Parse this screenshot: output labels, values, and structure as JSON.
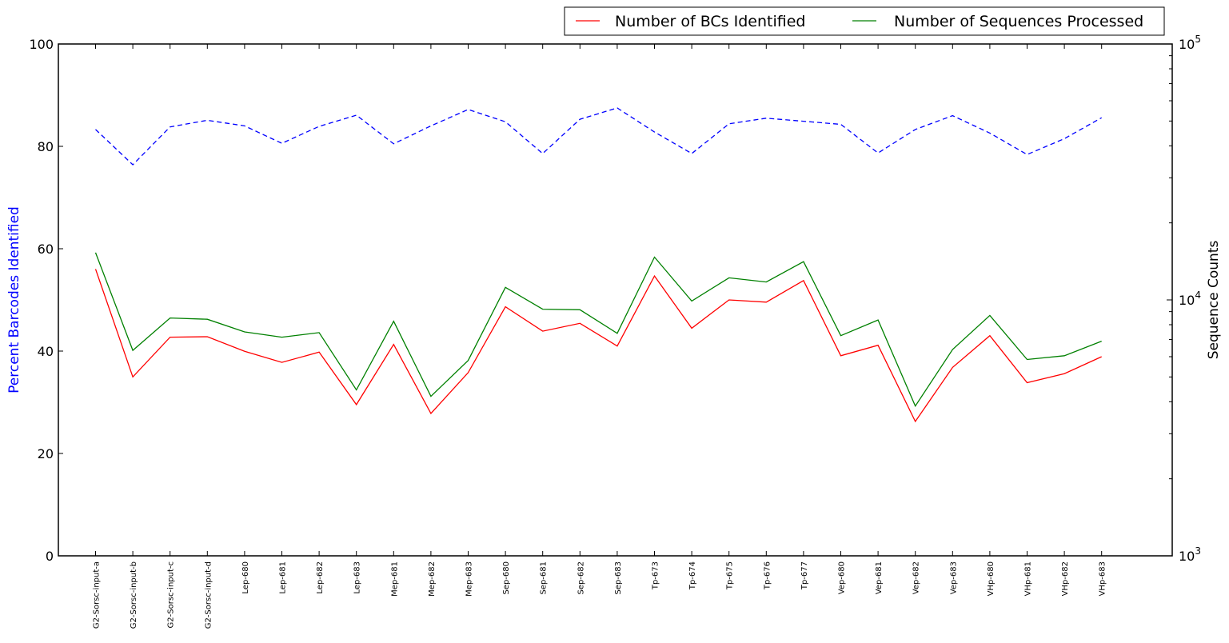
{
  "chart_data": {
    "type": "line",
    "ylabel_left": "Percent Barcodes Identified",
    "ylabel_right": "Sequence Counts",
    "ylim_left": [
      0,
      100
    ],
    "ylim_right": [
      1000,
      100000
    ],
    "right_scale": "log",
    "left_ticks": [
      "0",
      "20",
      "40",
      "60",
      "80",
      "100"
    ],
    "right_ticks": [
      {
        "base": "10",
        "exp": "3"
      },
      {
        "base": "10",
        "exp": "4"
      },
      {
        "base": "10",
        "exp": "5"
      }
    ],
    "grid": false,
    "legend_position": "top-right",
    "categories": [
      "G2-Sorsc-input-a",
      "G2-Sorsc-input-b",
      "G2-Sorsc-input-c",
      "G2-Sorsc-input-d",
      "Lep-680",
      "Lep-681",
      "Lep-682",
      "Lep-683",
      "Mep-681",
      "Mep-682",
      "Mep-683",
      "Sep-680",
      "Sep-681",
      "Sep-682",
      "Sep-683",
      "Tp-673",
      "Tp-674",
      "Tp-675",
      "Tp-676",
      "Tp-677",
      "Vep-680",
      "Vep-681",
      "Vep-682",
      "Vep-683",
      "VHp-680",
      "VHp-681",
      "VHp-682",
      "VHp-683"
    ],
    "series": [
      {
        "name": "Number of BCs Identified",
        "color": "#ff0000",
        "axis": "right",
        "style": "solid",
        "values": [
          13200,
          5000,
          7150,
          7180,
          6300,
          5700,
          6250,
          3900,
          6700,
          3600,
          5200,
          9400,
          7550,
          8100,
          6600,
          12400,
          7750,
          10000,
          9800,
          11900,
          6050,
          6650,
          3350,
          5450,
          7250,
          4750,
          5150,
          6000
        ]
      },
      {
        "name": "Number of Sequences Processed",
        "color": "#008000",
        "axis": "right",
        "style": "solid",
        "values": [
          15300,
          6350,
          8500,
          8400,
          7500,
          7150,
          7450,
          4450,
          8250,
          4200,
          5800,
          11200,
          9200,
          9150,
          7400,
          14700,
          9900,
          12200,
          11750,
          14100,
          7250,
          8350,
          3850,
          6400,
          8700,
          5850,
          6050,
          6900
        ]
      },
      {
        "name": "",
        "color": "#0000ff",
        "axis": "left",
        "style": "dashed",
        "values": [
          83.3,
          76.4,
          83.8,
          85.1,
          84.0,
          80.6,
          83.9,
          86.1,
          80.5,
          84.0,
          87.2,
          84.8,
          78.6,
          85.3,
          87.5,
          82.8,
          78.6,
          84.4,
          85.5,
          84.9,
          84.3,
          78.7,
          83.3,
          86.0,
          82.6,
          78.4,
          81.5,
          85.6
        ]
      }
    ]
  }
}
